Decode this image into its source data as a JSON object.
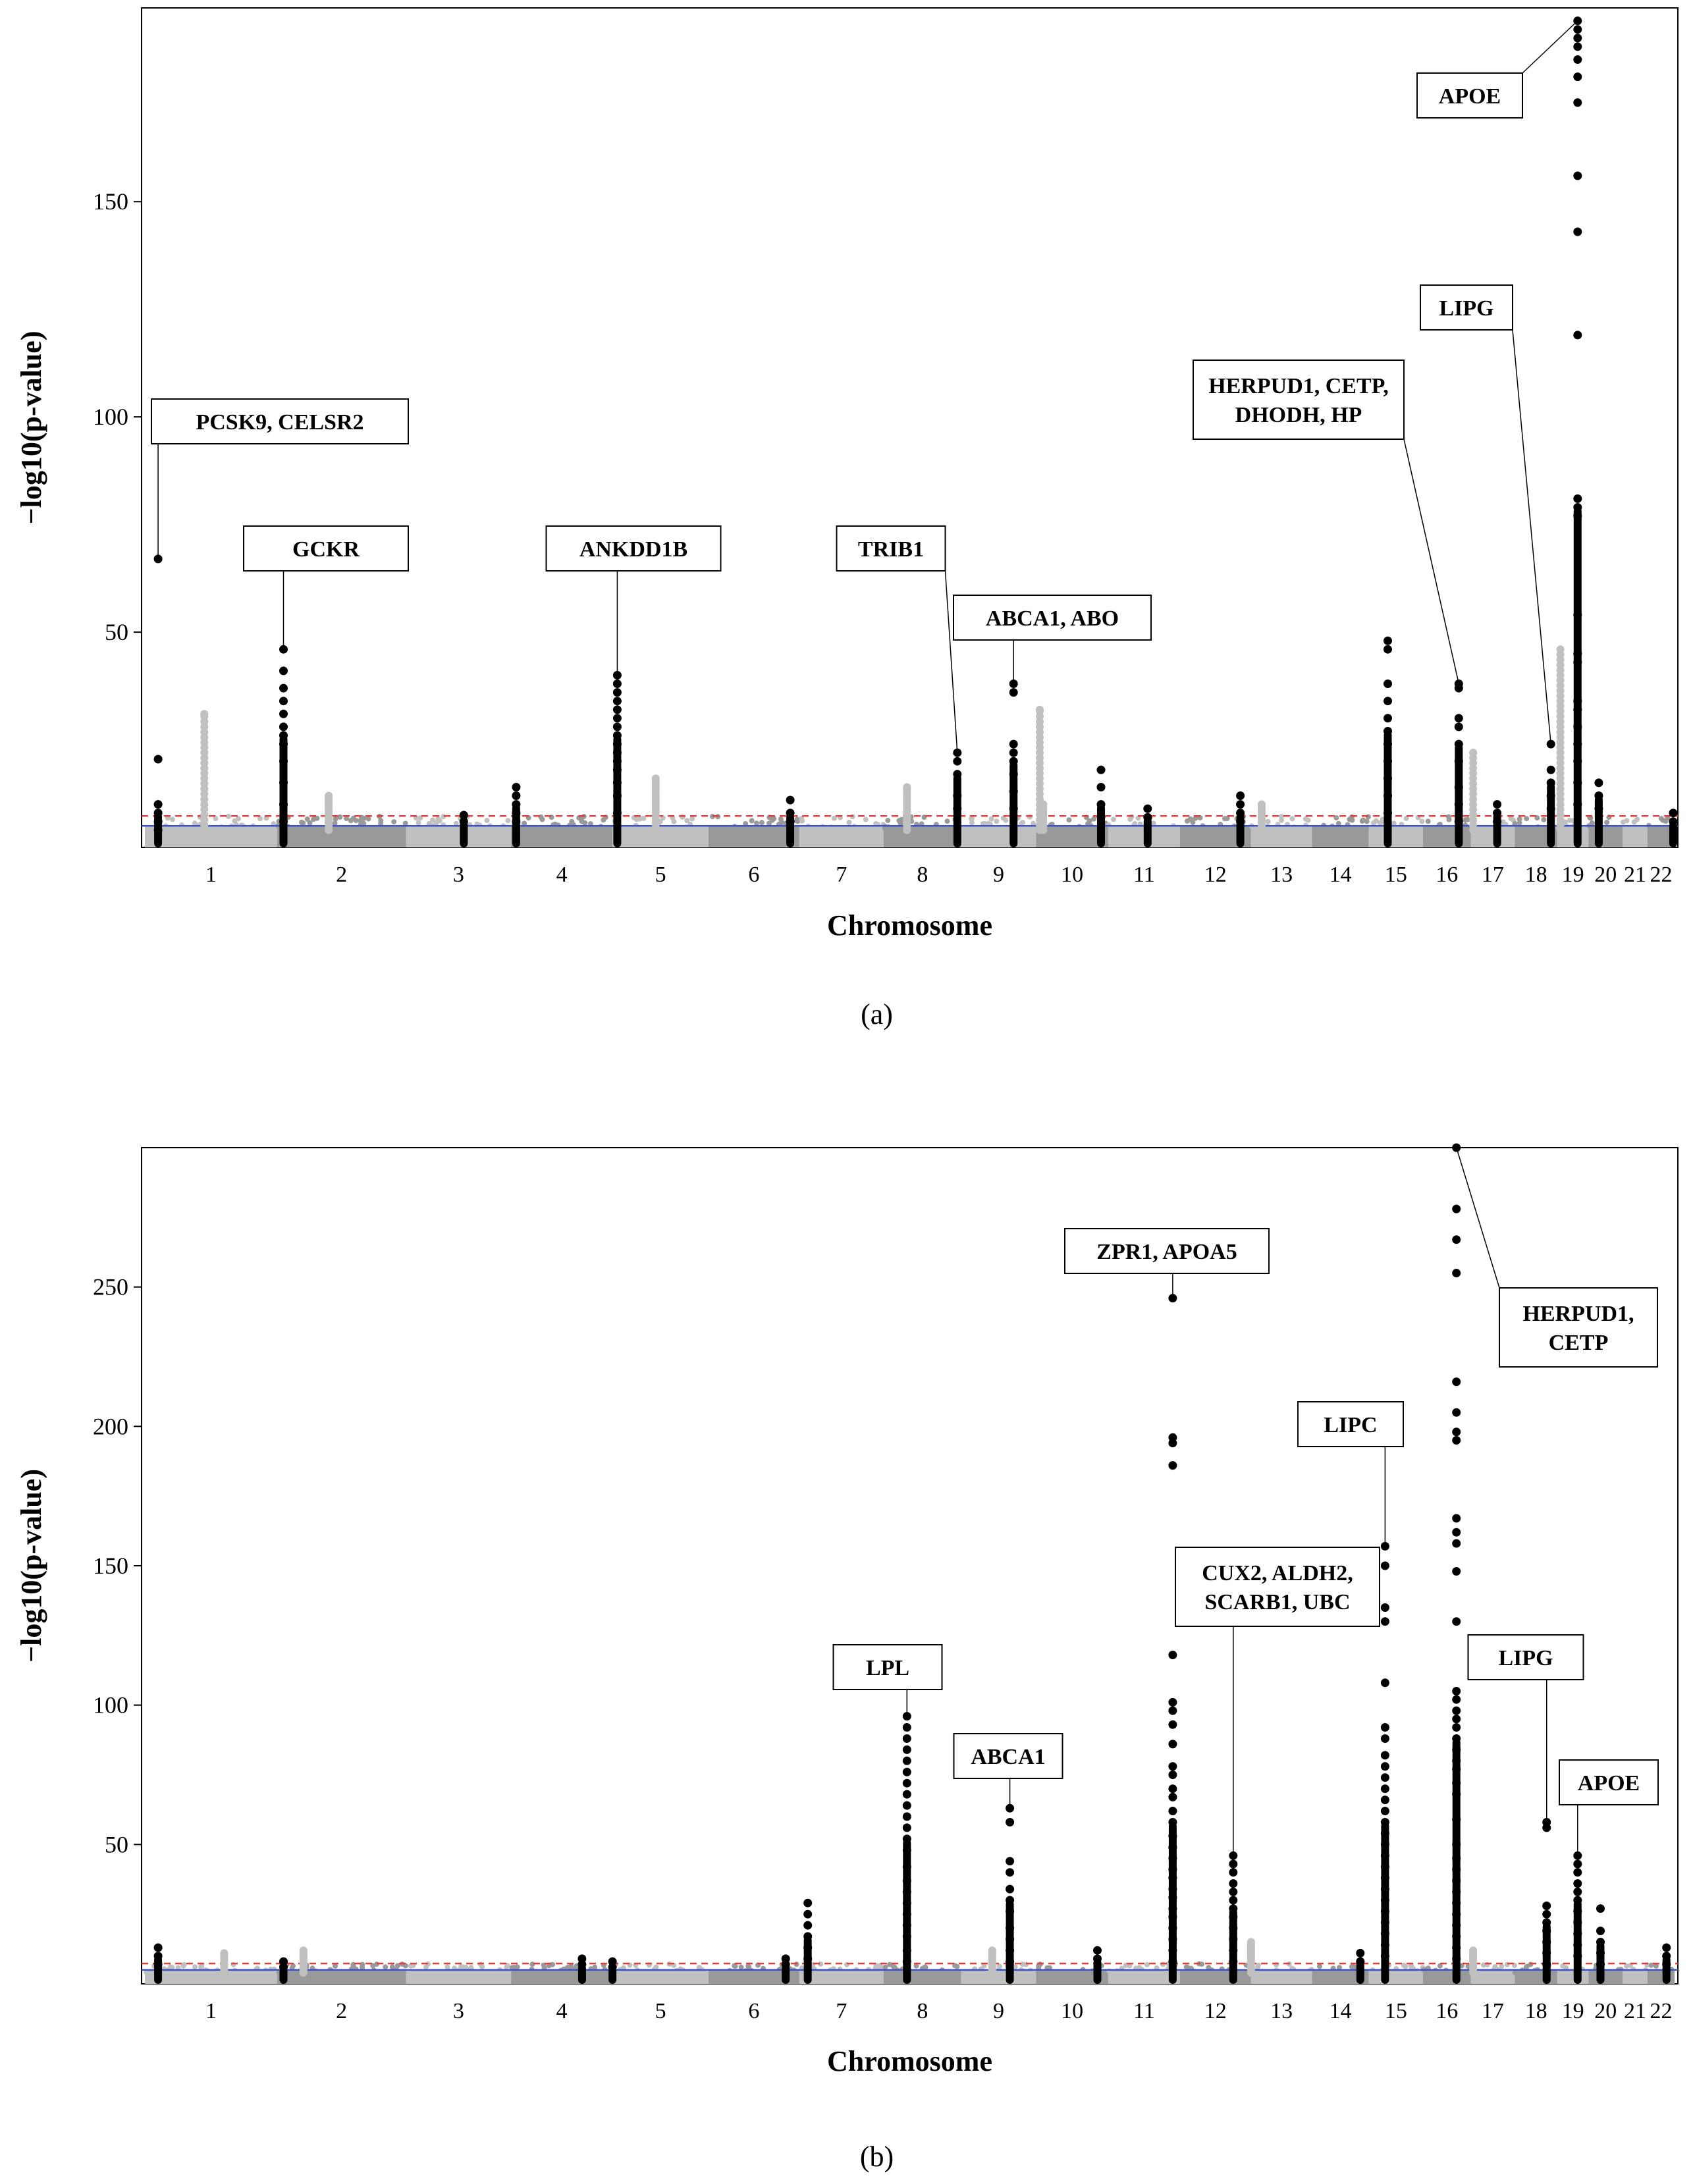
{
  "chart_data": [
    {
      "type": "scatter",
      "subtype": "manhattan",
      "panel_label": "(a)",
      "xlabel": "Chromosome",
      "ylabel": "−log10(p-value)",
      "ylim": [
        0,
        195
      ],
      "yticks": [
        50,
        100,
        150
      ],
      "chromosomes": [
        "1",
        "2",
        "3",
        "4",
        "5",
        "6",
        "7",
        "8",
        "9",
        "10",
        "11",
        "12",
        "13",
        "14",
        "15",
        "16",
        "17",
        "18",
        "19",
        "20",
        "21",
        "22"
      ],
      "thresholds": {
        "genome_wide_red_dashed": 7.3,
        "suggestive_blue": 5
      },
      "colors": {
        "peak": "#000000",
        "light": "#c0c0c0",
        "dark": "#999999",
        "red_line": "#e0403c",
        "blue_line": "#3a50c8"
      },
      "peaks": [
        {
          "chrom": "1",
          "pos": 0.1,
          "max": 67,
          "values": [
            67,
            20.5,
            10,
            8,
            6,
            4
          ]
        },
        {
          "chrom": "2",
          "pos": 0.05,
          "max": 46,
          "values": [
            46,
            41,
            37,
            34,
            31,
            28,
            26,
            24,
            20,
            15,
            10,
            6
          ]
        },
        {
          "chrom": "3",
          "pos": 0.55,
          "max": 7.5,
          "values": [
            7.5,
            6
          ]
        },
        {
          "chrom": "4",
          "pos": 0.05,
          "max": 14,
          "values": [
            14,
            12,
            10,
            8,
            6
          ]
        },
        {
          "chrom": "5",
          "pos": 0.05,
          "max": 40,
          "values": [
            40,
            38,
            36,
            34,
            32,
            30,
            28,
            26,
            24,
            22,
            20,
            18,
            15,
            12,
            8
          ]
        },
        {
          "chrom": "6",
          "pos": 0.9,
          "max": 11,
          "values": [
            11,
            8,
            6
          ]
        },
        {
          "chrom": "8",
          "pos": 0.95,
          "max": 22,
          "values": [
            22,
            20,
            17,
            12,
            9
          ]
        },
        {
          "chrom": "9",
          "pos": 0.7,
          "max": 38,
          "values": [
            38,
            36,
            24,
            22,
            20,
            17,
            13,
            9
          ]
        },
        {
          "chrom": "10",
          "pos": 0.9,
          "max": 18,
          "values": [
            18,
            14,
            10,
            7
          ]
        },
        {
          "chrom": "11",
          "pos": 0.55,
          "max": 9,
          "values": [
            9,
            7
          ]
        },
        {
          "chrom": "12",
          "pos": 0.85,
          "max": 12,
          "values": [
            12,
            10,
            8,
            6
          ]
        },
        {
          "chrom": "15",
          "pos": 0.35,
          "max": 48,
          "values": [
            48,
            46,
            38,
            34,
            30,
            27,
            24,
            20,
            16,
            12,
            8
          ]
        },
        {
          "chrom": "16",
          "pos": 0.75,
          "max": 38,
          "values": [
            38,
            37,
            30,
            28,
            24,
            20,
            14,
            10,
            6
          ]
        },
        {
          "chrom": "17",
          "pos": 0.6,
          "max": 10,
          "values": [
            10,
            8,
            6
          ]
        },
        {
          "chrom": "18",
          "pos": 0.85,
          "max": 24,
          "values": [
            24,
            18,
            15,
            12,
            9
          ]
        },
        {
          "chrom": "19",
          "pos": 0.65,
          "max": 192,
          "values": [
            192,
            190,
            188,
            186,
            183,
            179,
            173,
            156,
            143,
            119,
            81,
            79,
            77,
            54,
            45,
            43,
            34,
            32,
            28,
            24,
            20,
            15,
            10
          ]
        },
        {
          "chrom": "20",
          "pos": 0.3,
          "max": 15,
          "values": [
            15,
            12,
            9
          ]
        },
        {
          "chrom": "22",
          "pos": 0.95,
          "max": 8,
          "values": [
            8,
            6
          ]
        }
      ],
      "gray_peaks": [
        {
          "chrom": "1",
          "pos": 0.45,
          "max": 31
        },
        {
          "chrom": "2",
          "pos": 0.4,
          "max": 12
        },
        {
          "chrom": "5",
          "pos": 0.45,
          "max": 16
        },
        {
          "chrom": "8",
          "pos": 0.3,
          "max": 14
        },
        {
          "chrom": "9",
          "pos": 1.05,
          "max": 32
        },
        {
          "chrom": "10",
          "pos": 0.1,
          "max": 10
        },
        {
          "chrom": "12",
          "pos": 1.15,
          "max": 10
        },
        {
          "chrom": "16",
          "pos": 1.05,
          "max": 22
        },
        {
          "chrom": "19",
          "pos": 0.1,
          "max": 46
        }
      ],
      "annotations": [
        {
          "lines": [
            "PCSK9, CELSR2"
          ],
          "chrom": "1",
          "y": 67
        },
        {
          "lines": [
            "GCKR"
          ],
          "chrom": "2",
          "y": 46
        },
        {
          "lines": [
            "ANKDD1B"
          ],
          "chrom": "5",
          "y": 40
        },
        {
          "lines": [
            "TRIB1"
          ],
          "chrom": "8",
          "y": 22
        },
        {
          "lines": [
            "ABCA1, ABO"
          ],
          "chrom": "9",
          "y": 38
        },
        {
          "lines": [
            "HERPUD1, CETP,",
            "DHODH, HP"
          ],
          "chrom": "16",
          "y": 38
        },
        {
          "lines": [
            "LIPG"
          ],
          "chrom": "18",
          "y": 24
        },
        {
          "lines": [
            "APOE"
          ],
          "chrom": "19",
          "y": 192
        }
      ]
    },
    {
      "type": "scatter",
      "subtype": "manhattan",
      "panel_label": "(b)",
      "xlabel": "Chromosome",
      "ylabel": "−log10(p-value)",
      "ylim": [
        0,
        300
      ],
      "yticks": [
        50,
        100,
        150,
        200,
        250
      ],
      "chromosomes": [
        "1",
        "2",
        "3",
        "4",
        "5",
        "6",
        "7",
        "8",
        "9",
        "10",
        "11",
        "12",
        "13",
        "14",
        "15",
        "16",
        "17",
        "18",
        "19",
        "20",
        "21",
        "22"
      ],
      "thresholds": {
        "genome_wide_red_dashed": 7.3,
        "suggestive_blue": 5
      },
      "colors": {
        "peak": "#000000",
        "light": "#c0c0c0",
        "dark": "#999999",
        "red_line": "#e0403c",
        "blue_line": "#3a50c8"
      },
      "peaks": [
        {
          "chrom": "1",
          "pos": 0.1,
          "max": 13,
          "values": [
            13,
            10,
            7
          ]
        },
        {
          "chrom": "2",
          "pos": 0.05,
          "max": 8,
          "values": [
            8,
            6
          ]
        },
        {
          "chrom": "4",
          "pos": 0.7,
          "max": 9,
          "values": [
            9,
            7
          ]
        },
        {
          "chrom": "5",
          "pos": 0.0,
          "max": 8,
          "values": [
            8,
            6
          ]
        },
        {
          "chrom": "6",
          "pos": 0.85,
          "max": 9,
          "values": [
            9,
            7
          ]
        },
        {
          "chrom": "7",
          "pos": 0.1,
          "max": 29,
          "values": [
            29,
            25,
            21,
            17,
            13,
            9
          ]
        },
        {
          "chrom": "8",
          "pos": 0.3,
          "max": 96,
          "values": [
            96,
            92,
            88,
            84,
            80,
            76,
            72,
            68,
            64,
            60,
            56,
            52,
            48,
            42,
            37,
            33,
            29,
            25,
            21,
            17,
            12,
            8
          ]
        },
        {
          "chrom": "9",
          "pos": 0.65,
          "max": 63,
          "values": [
            63,
            58,
            44,
            40,
            34,
            30,
            26,
            20,
            16,
            12,
            8
          ]
        },
        {
          "chrom": "10",
          "pos": 0.85,
          "max": 12,
          "values": [
            12,
            9
          ]
        },
        {
          "chrom": "11",
          "pos": 0.9,
          "max": 246,
          "values": [
            246,
            196,
            194,
            186,
            118,
            101,
            98,
            93,
            86,
            78,
            75,
            70,
            67,
            62,
            58,
            53,
            49,
            45,
            41,
            38,
            34,
            31,
            27,
            24,
            20,
            16,
            12,
            8
          ]
        },
        {
          "chrom": "12",
          "pos": 0.75,
          "max": 46,
          "values": [
            46,
            43,
            40,
            36,
            33,
            30,
            27,
            24,
            20,
            16,
            12,
            8
          ]
        },
        {
          "chrom": "14",
          "pos": 0.85,
          "max": 11,
          "values": [
            11,
            8
          ]
        },
        {
          "chrom": "15",
          "pos": 0.3,
          "max": 157,
          "values": [
            157,
            150,
            135,
            130,
            108,
            92,
            88,
            82,
            78,
            74,
            70,
            66,
            62,
            58,
            54,
            50,
            46,
            42,
            38,
            34,
            30,
            26,
            22,
            18,
            14,
            10
          ]
        },
        {
          "chrom": "16",
          "pos": 0.7,
          "max": 300,
          "values": [
            300,
            278,
            267,
            255,
            216,
            205,
            198,
            195,
            167,
            162,
            158,
            148,
            130,
            105,
            102,
            98,
            95,
            92,
            88,
            84,
            80,
            77,
            72,
            68,
            59,
            50,
            45,
            41,
            37,
            33,
            29,
            25,
            21,
            17,
            13,
            9
          ]
        },
        {
          "chrom": "18",
          "pos": 0.75,
          "max": 58,
          "values": [
            58,
            56,
            28,
            25,
            22,
            19,
            15,
            11,
            7
          ]
        },
        {
          "chrom": "19",
          "pos": 0.65,
          "max": 46,
          "values": [
            46,
            43,
            40,
            36,
            33,
            30,
            26,
            22,
            18,
            14,
            10
          ]
        },
        {
          "chrom": "20",
          "pos": 0.35,
          "max": 27,
          "values": [
            27,
            19,
            15,
            11,
            7
          ]
        },
        {
          "chrom": "22",
          "pos": 0.7,
          "max": 13,
          "values": [
            13,
            10,
            7
          ]
        }
      ],
      "gray_peaks": [
        {
          "chrom": "1",
          "pos": 0.6,
          "max": 11
        },
        {
          "chrom": "1",
          "pos": 1.2,
          "max": 12
        },
        {
          "chrom": "8",
          "pos": 1.4,
          "max": 12
        },
        {
          "chrom": "12",
          "pos": 1.0,
          "max": 15
        },
        {
          "chrom": "16",
          "pos": 1.05,
          "max": 12
        }
      ],
      "annotations": [
        {
          "lines": [
            "LPL"
          ],
          "chrom": "8",
          "y": 96
        },
        {
          "lines": [
            "ABCA1"
          ],
          "chrom": "9",
          "y": 63
        },
        {
          "lines": [
            "ZPR1, APOA5"
          ],
          "chrom": "11",
          "y": 246
        },
        {
          "lines": [
            "CUX2, ALDH2,",
            "SCARB1, UBC"
          ],
          "chrom": "12",
          "y": 46
        },
        {
          "lines": [
            "LIPC"
          ],
          "chrom": "15",
          "y": 157
        },
        {
          "lines": [
            "HERPUD1,",
            "CETP"
          ],
          "chrom": "16",
          "y": 300
        },
        {
          "lines": [
            "LIPG"
          ],
          "chrom": "18",
          "y": 58
        },
        {
          "lines": [
            "APOE"
          ],
          "chrom": "19",
          "y": 46
        }
      ]
    }
  ]
}
